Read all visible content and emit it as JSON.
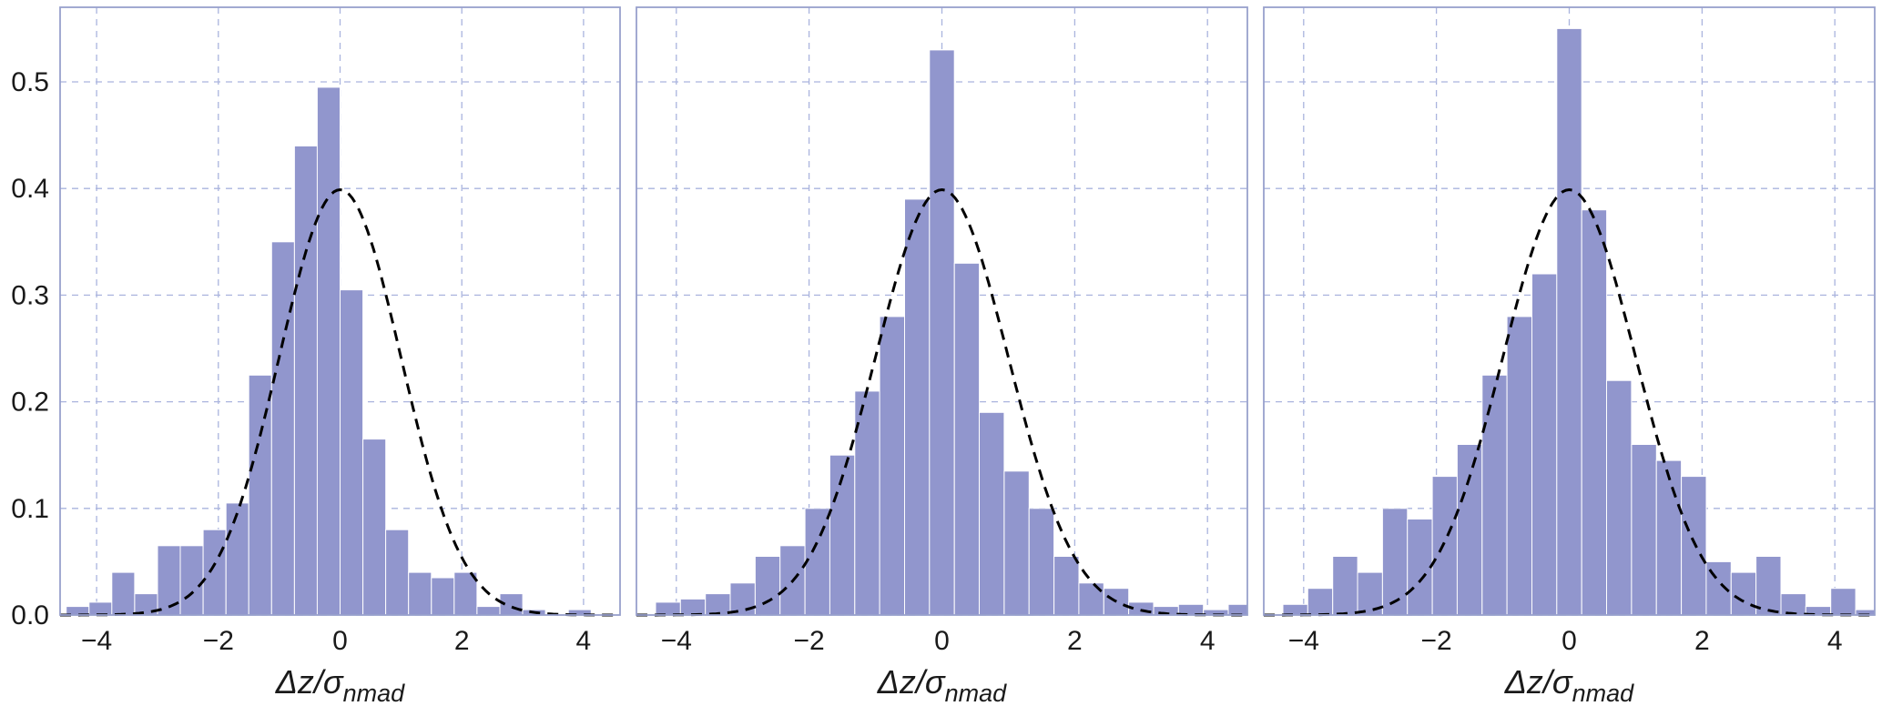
{
  "figure": {
    "background": "#ffffff",
    "bar_color": "#9196cd",
    "bar_edge_color": "#ffffff",
    "grid_color": "#aab4de",
    "border_color": "#98a0cc",
    "curve_color": "#000000",
    "text_color": "#1a1a1a"
  },
  "chart_data": [
    {
      "type": "bar",
      "title": "",
      "xlabel": "Δz/σ_nmad",
      "xlabel_main": "Δz/σ",
      "xlabel_sub": "nmad",
      "ylabel": "",
      "xlim": [
        -4.6,
        4.6
      ],
      "ylim": [
        0,
        0.57
      ],
      "grid": true,
      "x_ticks": [
        -4,
        -2,
        0,
        2,
        4
      ],
      "x_tick_labels": [
        "−4",
        "−2",
        "0",
        "2",
        "4"
      ],
      "y_ticks": [
        0.0,
        0.1,
        0.2,
        0.3,
        0.4,
        0.5
      ],
      "y_tick_labels": [
        "0.0",
        "0.1",
        "0.2",
        "0.3",
        "0.4",
        "0.5"
      ],
      "show_y_tick_labels": true,
      "bin_start": -4.5,
      "bin_width": 0.375,
      "values": [
        0.008,
        0.012,
        0.04,
        0.02,
        0.065,
        0.065,
        0.08,
        0.105,
        0.225,
        0.35,
        0.44,
        0.495,
        0.305,
        0.165,
        0.08,
        0.04,
        0.035,
        0.04,
        0.008,
        0.02,
        0.005,
        0.0,
        0.005,
        0.0
      ],
      "overlay_curve": {
        "type": "gaussian",
        "mean": 0,
        "sigma": 1,
        "peak": 0.3989
      }
    },
    {
      "type": "bar",
      "title": "",
      "xlabel": "Δz/σ_nmad",
      "xlabel_main": "Δz/σ",
      "xlabel_sub": "nmad",
      "ylabel": "",
      "xlim": [
        -4.6,
        4.6
      ],
      "ylim": [
        0,
        0.57
      ],
      "grid": true,
      "x_ticks": [
        -4,
        -2,
        0,
        2,
        4
      ],
      "x_tick_labels": [
        "−4",
        "−2",
        "0",
        "2",
        "4"
      ],
      "y_ticks": [
        0.0,
        0.1,
        0.2,
        0.3,
        0.4,
        0.5
      ],
      "y_tick_labels": [
        "0.0",
        "0.1",
        "0.2",
        "0.3",
        "0.4",
        "0.5"
      ],
      "show_y_tick_labels": false,
      "bin_start": -4.3125,
      "bin_width": 0.375,
      "values": [
        0.012,
        0.015,
        0.02,
        0.03,
        0.055,
        0.065,
        0.1,
        0.15,
        0.21,
        0.28,
        0.39,
        0.53,
        0.33,
        0.19,
        0.135,
        0.1,
        0.055,
        0.03,
        0.025,
        0.012,
        0.008,
        0.01,
        0.005,
        0.01
      ],
      "overlay_curve": {
        "type": "gaussian",
        "mean": 0,
        "sigma": 1,
        "peak": 0.3989
      }
    },
    {
      "type": "bar",
      "title": "",
      "xlabel": "Δz/σ_nmad",
      "xlabel_main": "Δz/σ",
      "xlabel_sub": "nmad",
      "ylabel": "",
      "xlim": [
        -4.6,
        4.6
      ],
      "ylim": [
        0,
        0.57
      ],
      "grid": true,
      "x_ticks": [
        -4,
        -2,
        0,
        2,
        4
      ],
      "x_tick_labels": [
        "−4",
        "−2",
        "0",
        "2",
        "4"
      ],
      "y_ticks": [
        0.0,
        0.1,
        0.2,
        0.3,
        0.4,
        0.5
      ],
      "y_tick_labels": [
        "0.0",
        "0.1",
        "0.2",
        "0.3",
        "0.4",
        "0.5"
      ],
      "show_y_tick_labels": false,
      "bin_start": -4.3125,
      "bin_width": 0.375,
      "values": [
        0.01,
        0.025,
        0.055,
        0.04,
        0.1,
        0.09,
        0.13,
        0.16,
        0.225,
        0.28,
        0.32,
        0.55,
        0.38,
        0.22,
        0.16,
        0.145,
        0.13,
        0.05,
        0.04,
        0.055,
        0.02,
        0.008,
        0.025,
        0.005
      ],
      "overlay_curve": {
        "type": "gaussian",
        "mean": 0,
        "sigma": 1,
        "peak": 0.3989
      }
    }
  ]
}
